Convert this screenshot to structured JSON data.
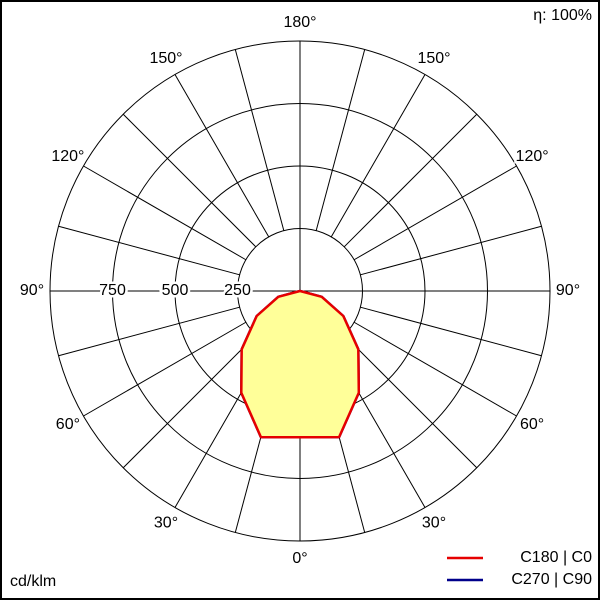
{
  "chart_data": {
    "type": "polar",
    "efficiency_label": "η: 100%",
    "unit_label": "cd/klm",
    "rlim": [
      0,
      1000
    ],
    "rticks": [
      250,
      500,
      750
    ],
    "angle_ticks": [
      {
        "value": 0,
        "label": "0°"
      },
      {
        "value": -30,
        "label": "30°"
      },
      {
        "value": 30,
        "label": "30°"
      },
      {
        "value": -60,
        "label": "60°"
      },
      {
        "value": 60,
        "label": "60°"
      },
      {
        "value": -90,
        "label": "90°"
      },
      {
        "value": 90,
        "label": "90°"
      },
      {
        "value": -120,
        "label": "120°"
      },
      {
        "value": 120,
        "label": "120°"
      },
      {
        "value": -150,
        "label": "150°"
      },
      {
        "value": 150,
        "label": "150°"
      },
      {
        "value": 180,
        "label": "180°"
      }
    ],
    "x": [
      -90,
      -75,
      -60,
      -45,
      -30,
      -15,
      0,
      15,
      30,
      45,
      60,
      75,
      90
    ],
    "series": [
      {
        "name": "C270 | C90",
        "color": "#00008b",
        "values": [
          0,
          90,
          200,
          330,
          470,
          605,
          585,
          605,
          470,
          330,
          200,
          90,
          0
        ]
      },
      {
        "name": "C180 | C0",
        "color": "#e60000",
        "fill": "#ffff99",
        "values": [
          0,
          90,
          200,
          330,
          470,
          605,
          585,
          605,
          470,
          330,
          200,
          90,
          0
        ]
      }
    ]
  }
}
